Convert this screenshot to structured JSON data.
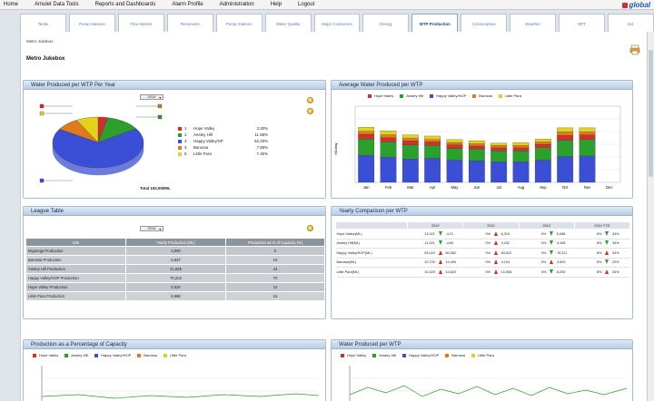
{
  "menubar": {
    "items": [
      "Home",
      "Amulet Data Tools",
      "Reports and Dashboards",
      "Alarm Profile",
      "Administration",
      "Help",
      "Logout"
    ],
    "logo_text": "global"
  },
  "tabs": [
    {
      "label": "Tanks",
      "active": false
    },
    {
      "label": "Pump Stations",
      "active": false
    },
    {
      "label": "Flow Meters",
      "active": false
    },
    {
      "label": "Reservoirs",
      "active": false
    },
    {
      "label": "Pump Stations",
      "active": false
    },
    {
      "label": "Water Quality",
      "active": false
    },
    {
      "label": "Major Customers",
      "active": false
    },
    {
      "label": "Energy",
      "active": false
    },
    {
      "label": "WTP Production",
      "active": true
    },
    {
      "label": "Consumption",
      "active": false
    },
    {
      "label": "Weather",
      "active": false
    },
    {
      "label": "NPT",
      "active": false
    },
    {
      "label": "Ind.",
      "active": false
    }
  ],
  "page": {
    "breadcrumb": "Metro Jukebox",
    "title": "Metro Jukebox"
  },
  "colors": {
    "hope_valley": "#d62d2d",
    "anstey_hill": "#2ca02c",
    "happy_valley": "#3b4fd6",
    "barossa": "#e07b1b",
    "little_para": "#e3d21c"
  },
  "panels": {
    "wtp_year": {
      "title": "Water Produced per WTP Per Year",
      "year_select": "2014",
      "total_label": "Total 193,050ML",
      "legend": [
        {
          "num": "1",
          "label": "Hope Valley",
          "pct": "3.20%"
        },
        {
          "num": "2",
          "label": "Anstey Hill",
          "pct": "11.58%"
        },
        {
          "num": "3",
          "label": "Happy Valley/SP",
          "pct": "63.33%"
        },
        {
          "num": "4",
          "label": "Barossa",
          "pct": "7.68%"
        },
        {
          "num": "5",
          "label": "Little Para",
          "pct": "7.40%"
        }
      ]
    },
    "avg_wtp": {
      "title": "Average Water Produced per WTP",
      "ylabel": "ML/day"
    },
    "league": {
      "title": "League Table",
      "year_select": "2014",
      "headers": [
        "Site",
        "Yearly Production (ML)",
        "Production as % of Capacity (%)"
      ],
      "rows": [
        [
          "Myponga Production",
          "3,800",
          "0"
        ],
        [
          "Barossa Production",
          "6,837",
          "10"
        ],
        [
          "Anstey Hill Production",
          "21,825",
          "44"
        ],
        [
          "Happy Valley/HOP Production",
          "70,202",
          "70"
        ],
        [
          "Hope Valley Production",
          "5,520",
          "10"
        ],
        [
          "Little Para Production",
          "8,986",
          "15"
        ]
      ]
    },
    "comparison": {
      "title": "Yearly Comparison per WTP",
      "headers": [
        "",
        "2010",
        "",
        "",
        "2012",
        "",
        "",
        "2013",
        "",
        "",
        "2014 YTD",
        "",
        ""
      ],
      "rows": [
        {
          "name": "Hope Valley(ML)",
          "cells": [
            [
              "13,021",
              "",
              "-4.21"
            ],
            [
              "0%",
              "",
              "6,324"
            ],
            [
              "0%",
              "",
              "6,088"
            ],
            [
              "8%",
              "",
              "34%"
            ]
          ],
          "dirs": [
            "dn",
            "up",
            "dn",
            "dn"
          ]
        },
        {
          "name": "Anstey Hill(ML)",
          "cells": [
            [
              "11,021",
              "",
              "-4.89"
            ],
            [
              "0%",
              "",
              "4,232"
            ],
            [
              "0%",
              "",
              "4,108"
            ],
            [
              "8%",
              "",
              "34%"
            ]
          ],
          "dirs": [
            "dn",
            "up",
            "dn",
            "dn"
          ]
        },
        {
          "name": "Happy Valley/HOP(ML)",
          "cells": [
            [
              "53,020",
              "",
              "80,062"
            ],
            [
              "0%",
              "",
              "83,522"
            ],
            [
              "0%",
              "",
              "78,221"
            ],
            [
              "8%",
              "",
              "34%"
            ]
          ],
          "dirs": [
            "up",
            "up",
            "dn",
            "up"
          ]
        },
        {
          "name": "Barossa(ML)",
          "cells": [
            [
              "10,720",
              "",
              "10,400"
            ],
            [
              "0%",
              "",
              "4,104"
            ],
            [
              "0%",
              "",
              "4,520"
            ],
            [
              "8%",
              "",
              "22%"
            ]
          ],
          "dirs": [
            "up",
            "up",
            "up",
            "dn"
          ]
        },
        {
          "name": "Little Para(ML)",
          "cells": [
            [
              "10,320",
              "",
              "10,820"
            ],
            [
              "0%",
              "",
              "10,008"
            ],
            [
              "0%",
              "",
              "8,200"
            ],
            [
              "8%",
              "",
              "34%"
            ]
          ],
          "dirs": [
            "up",
            "up",
            "dn",
            "up"
          ]
        }
      ]
    },
    "capacity": {
      "title": "Production as a Percentage of Capacity"
    },
    "wtp_month": {
      "title": "Water Produced per WTP"
    }
  },
  "series_legend": [
    "Hope Valley",
    "Anstey Hill",
    "Happy Valley/HOP",
    "Barossa",
    "Little Para"
  ],
  "chart_data": [
    {
      "type": "pie",
      "title": "Water Produced per WTP Per Year",
      "labels": [
        "Hope Valley",
        "Anstey Hill",
        "Happy Valley/SP",
        "Barossa",
        "Little Para"
      ],
      "values": [
        3.2,
        11.58,
        63.33,
        7.68,
        7.4
      ]
    },
    {
      "type": "bar",
      "title": "Average Water Produced per WTP",
      "ylabel": "ML/day",
      "categories": [
        "Jan",
        "Feb",
        "Mar",
        "Apr",
        "May",
        "Jun",
        "Jul",
        "Aug",
        "Sep",
        "Oct",
        "Nov",
        "Dec"
      ],
      "stacked": true,
      "ylim": [
        0,
        650
      ],
      "series": [
        {
          "name": "Happy Valley/HOP",
          "values": [
            230,
            215,
            200,
            205,
            190,
            185,
            175,
            175,
            190,
            220,
            225,
            0
          ]
        },
        {
          "name": "Anstey Hill",
          "values": [
            140,
            130,
            120,
            110,
            100,
            100,
            95,
            95,
            105,
            140,
            140,
            0
          ]
        },
        {
          "name": "Hope Valley",
          "values": [
            40,
            35,
            35,
            30,
            30,
            25,
            25,
            25,
            30,
            40,
            40,
            0
          ]
        },
        {
          "name": "Barossa",
          "values": [
            25,
            25,
            20,
            20,
            20,
            20,
            20,
            20,
            20,
            30,
            25,
            0
          ]
        },
        {
          "name": "Little Para",
          "values": [
            35,
            35,
            30,
            30,
            25,
            25,
            20,
            25,
            25,
            35,
            35,
            0
          ]
        }
      ]
    }
  ]
}
